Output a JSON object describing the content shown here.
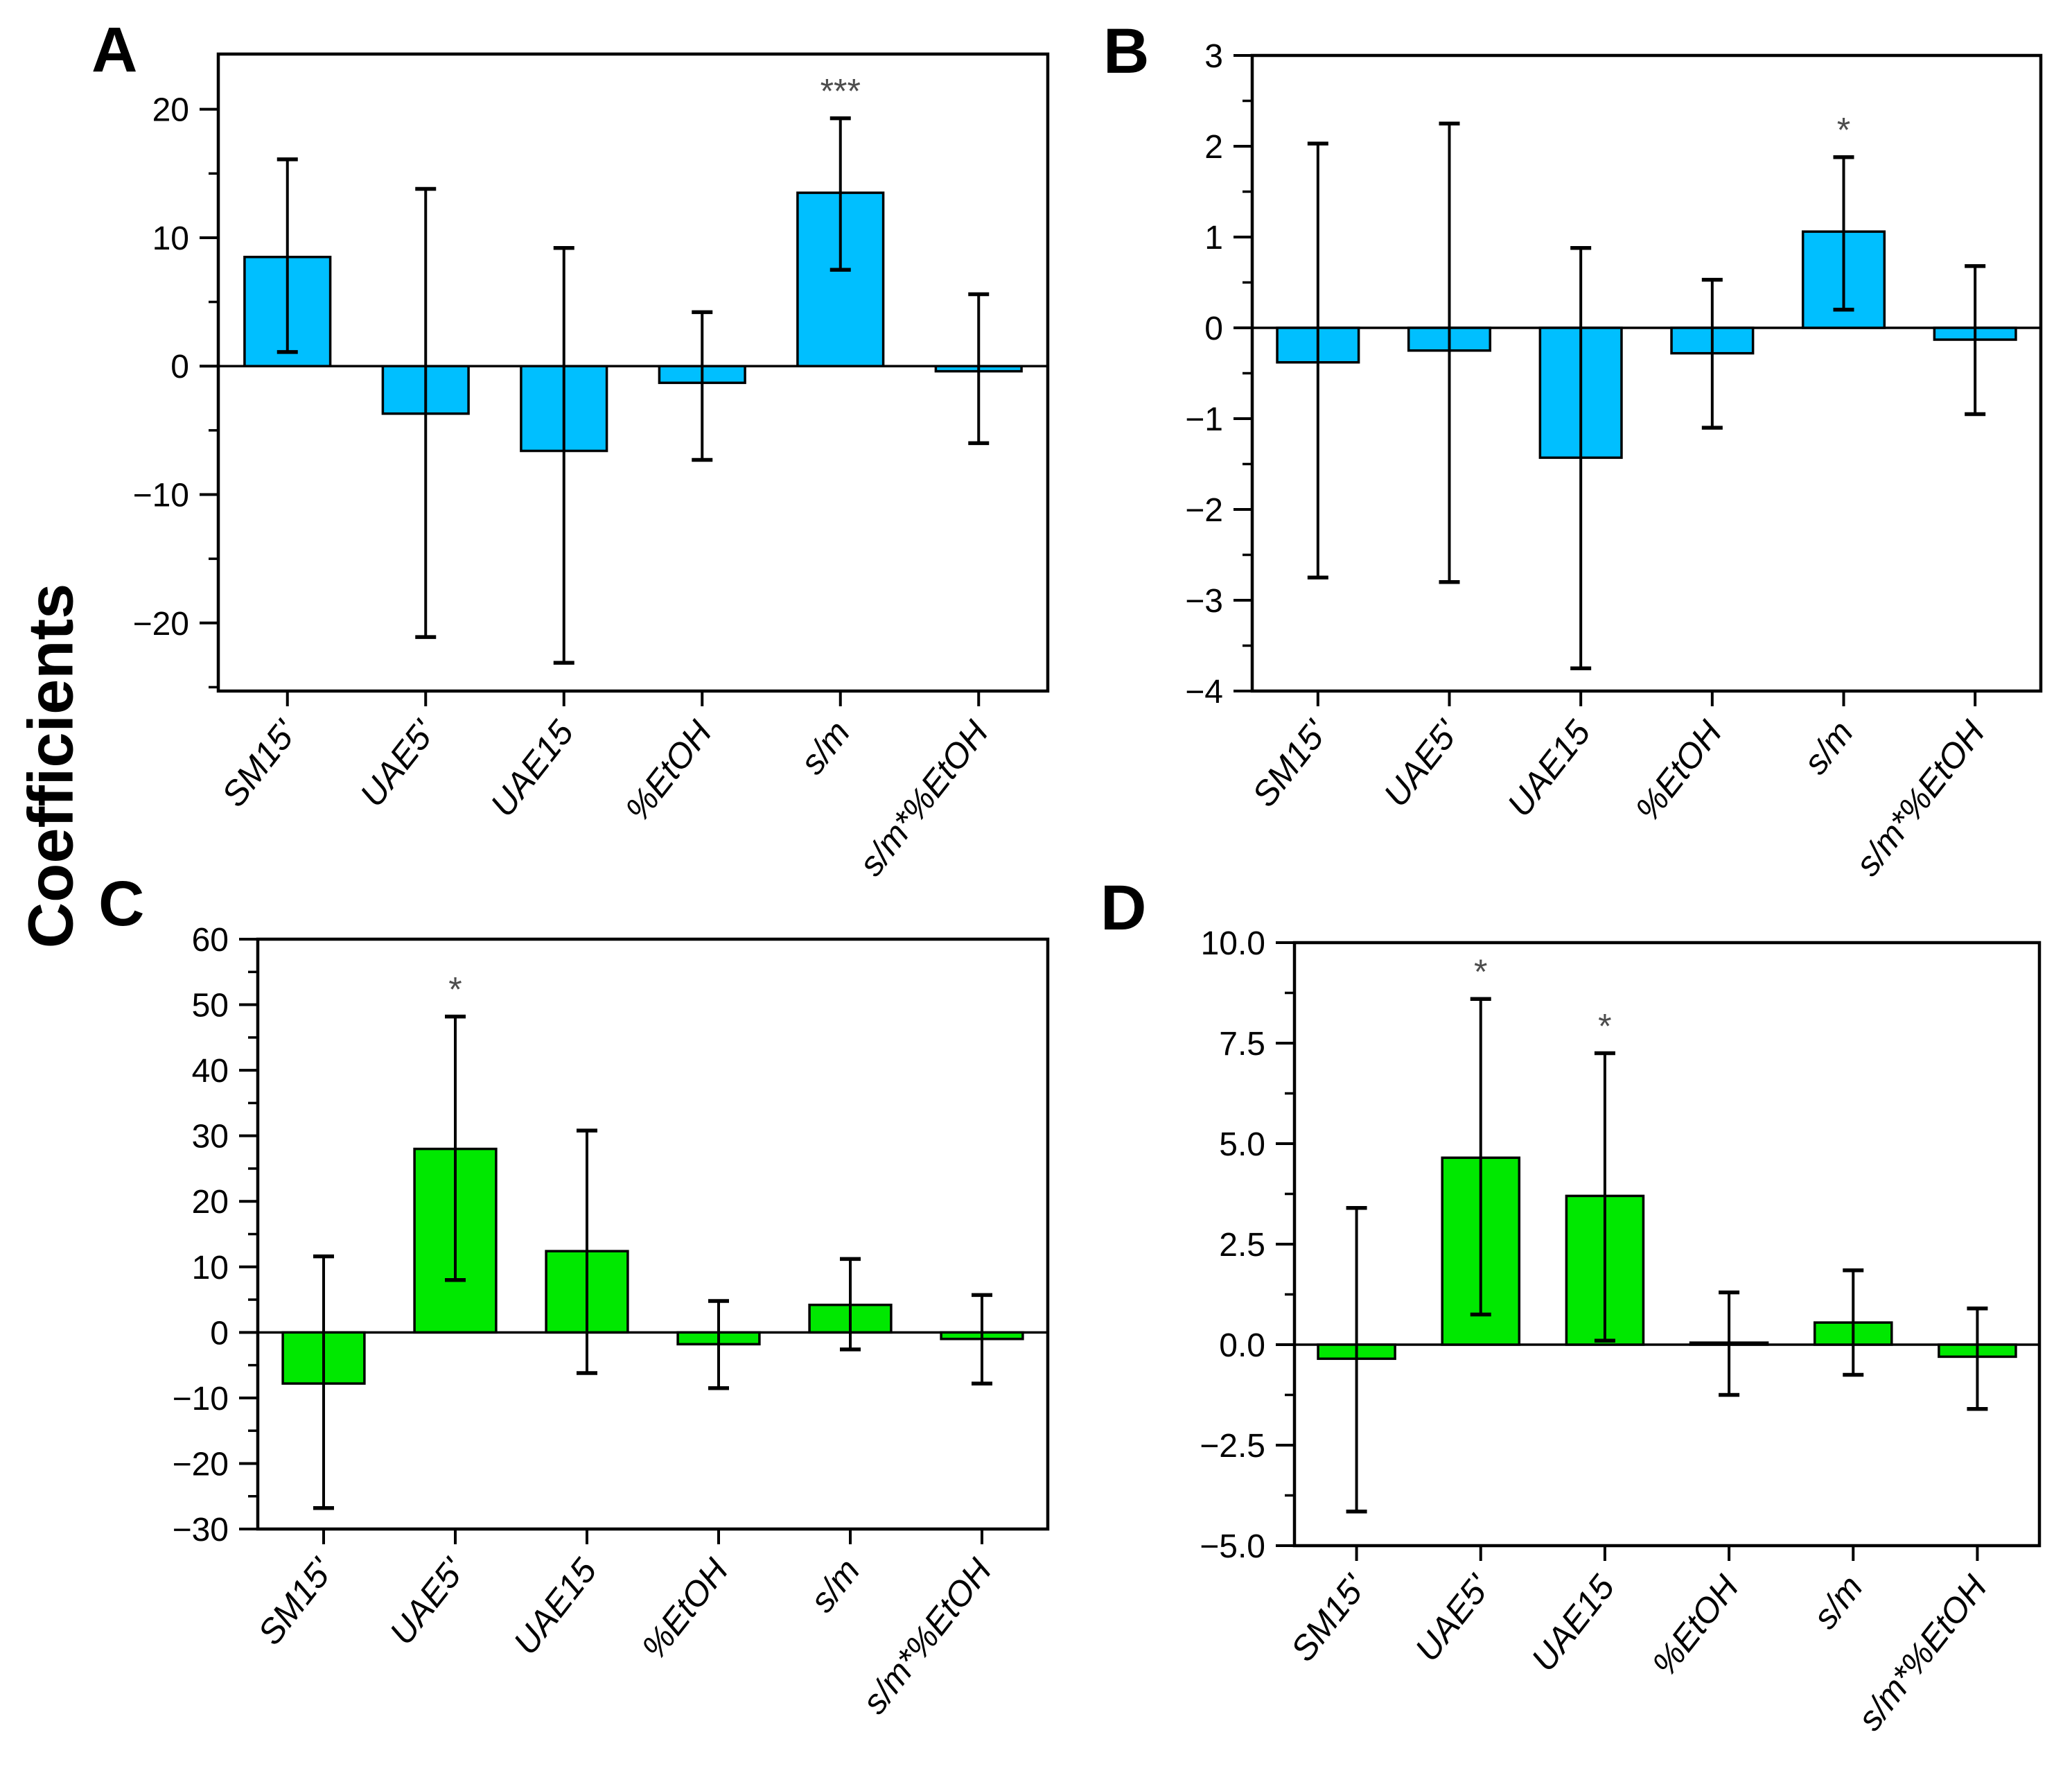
{
  "figure": {
    "ylabel": "Coefficients",
    "background": "#ffffff",
    "frame_color": "#000000",
    "error_bar_color": "#000000",
    "significance_color": "#4d4d4d"
  },
  "chart_data": [
    {
      "panel_label": "A",
      "type": "bar",
      "bar_color": "#00bfff",
      "categories": [
        "SM15'",
        "UAE5'",
        "UAE15",
        "%EtOH",
        "s/m",
        "s/m*%EtOH"
      ],
      "values": [
        8.5,
        -3.7,
        -6.6,
        -1.3,
        13.5,
        -0.4
      ],
      "error_low": [
        1.1,
        -21.1,
        -23.1,
        -7.3,
        7.5,
        -6.0
      ],
      "error_high": [
        16.1,
        13.8,
        9.2,
        4.2,
        19.3,
        5.6
      ],
      "significance": [
        "",
        "",
        "",
        "",
        "***",
        ""
      ],
      "ylim": [
        -25.3,
        24.3
      ],
      "yticks": [
        -20,
        -10,
        0,
        10,
        20
      ],
      "ytick_labels": [
        "−20",
        "−10",
        "0",
        "10",
        "20"
      ],
      "minor_step": 5,
      "grid": false,
      "legend": null
    },
    {
      "panel_label": "B",
      "type": "bar",
      "bar_color": "#00bfff",
      "categories": [
        "SM15'",
        "UAE5'",
        "UAE15",
        "%EtOH",
        "s/m",
        "s/m*%EtOH"
      ],
      "values": [
        -0.38,
        -0.25,
        -1.43,
        -0.28,
        1.06,
        -0.13
      ],
      "error_low": [
        -2.75,
        -2.8,
        -3.75,
        -1.1,
        0.2,
        -0.95
      ],
      "error_high": [
        2.03,
        2.25,
        0.88,
        0.53,
        1.88,
        0.68
      ],
      "significance": [
        "",
        "",
        "",
        "",
        "*",
        ""
      ],
      "ylim": [
        -4,
        3
      ],
      "yticks": [
        -4,
        -3,
        -2,
        -1,
        0,
        1,
        2,
        3
      ],
      "ytick_labels": [
        "−4",
        "−3",
        "−2",
        "−1",
        "0",
        "1",
        "2",
        "3"
      ],
      "minor_step": 0.5,
      "grid": false,
      "legend": null
    },
    {
      "panel_label": "C",
      "type": "bar",
      "bar_color": "#00e800",
      "categories": [
        "SM15'",
        "UAE5'",
        "UAE15",
        "%EtOH",
        "s/m",
        "s/m*%EtOH"
      ],
      "values": [
        -7.8,
        28.0,
        12.4,
        -1.8,
        4.2,
        -1.0
      ],
      "error_low": [
        -26.8,
        8.0,
        -6.2,
        -8.5,
        -2.6,
        -7.8
      ],
      "error_high": [
        11.6,
        48.2,
        30.8,
        4.8,
        11.2,
        5.7
      ],
      "significance": [
        "",
        "*",
        "",
        "",
        "",
        ""
      ],
      "ylim": [
        -30,
        60
      ],
      "yticks": [
        -30,
        -20,
        -10,
        0,
        10,
        20,
        30,
        40,
        50,
        60
      ],
      "ytick_labels": [
        "−30",
        "−20",
        "−10",
        "0",
        "10",
        "20",
        "30",
        "40",
        "50",
        "60"
      ],
      "minor_step": 5,
      "grid": false,
      "legend": null
    },
    {
      "panel_label": "D",
      "type": "bar",
      "bar_color": "#00e800",
      "categories": [
        "SM15'",
        "UAE5'",
        "UAE15",
        "%EtOH",
        "s/m",
        "s/m*%EtOH"
      ],
      "values": [
        -0.35,
        4.65,
        3.7,
        0.05,
        0.55,
        -0.3
      ],
      "error_low": [
        -4.15,
        0.75,
        0.1,
        -1.25,
        -0.75,
        -1.6
      ],
      "error_high": [
        3.4,
        8.6,
        7.25,
        1.3,
        1.85,
        0.9
      ],
      "significance": [
        "",
        "*",
        "*",
        "",
        "",
        ""
      ],
      "ylim": [
        -5,
        10
      ],
      "yticks": [
        -5,
        -2.5,
        0,
        2.5,
        5,
        7.5,
        10
      ],
      "ytick_labels": [
        "−5.0",
        "−2.5",
        "0.0",
        "2.5",
        "5.0",
        "7.5",
        "10.0"
      ],
      "minor_step": 1.25,
      "grid": false,
      "legend": null
    }
  ]
}
